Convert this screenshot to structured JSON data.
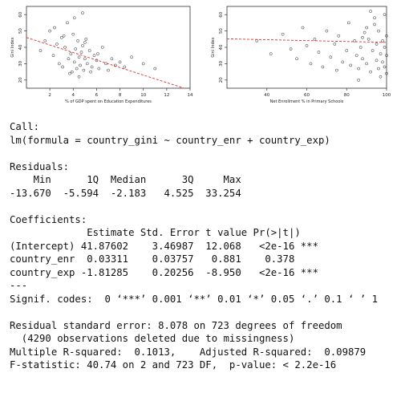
{
  "chart_data": [
    {
      "type": "scatter",
      "title": "",
      "xlabel": "% of GDP spent on Education Expenditures",
      "ylabel": "Gini Index",
      "xlim": [
        0,
        14
      ],
      "ylim": [
        15,
        65
      ],
      "xticks": [
        "2",
        "4",
        "6",
        "8",
        "10",
        "12",
        "14"
      ],
      "yticks": [
        "20",
        "30",
        "40",
        "50",
        "60"
      ],
      "grid": false,
      "series": [
        {
          "values_description_x_center": 4.2,
          "x": [
            1.2,
            1.6,
            2.0,
            2.3,
            2.6,
            2.8,
            3.0,
            3.1,
            3.3,
            3.5,
            3.6,
            3.8,
            3.9,
            4.0,
            4.1,
            4.2,
            4.3,
            4.4,
            4.5,
            4.6,
            4.7,
            4.8,
            4.9,
            5.0,
            5.1,
            5.2,
            5.4,
            5.6,
            5.8,
            6.0,
            6.2,
            6.5,
            6.8,
            7.0,
            7.3,
            7.6,
            8.0,
            8.4,
            9.0,
            10.0,
            11.0,
            2.4,
            3.2,
            3.7,
            4.1,
            4.5,
            5.0,
            5.5,
            6.1,
            4.8
          ],
          "y": [
            38,
            44,
            50,
            35,
            42,
            30,
            46,
            28,
            40,
            55,
            33,
            36,
            25,
            48,
            31,
            39,
            27,
            44,
            34,
            29,
            37,
            41,
            26,
            33,
            45,
            30,
            38,
            28,
            35,
            32,
            27,
            40,
            30,
            26,
            33,
            29,
            31,
            28,
            34,
            30,
            27,
            52,
            47,
            24,
            58,
            22,
            43,
            25,
            36,
            61
          ]
        }
      ],
      "trend": {
        "x": [
          0,
          13.5
        ],
        "y": [
          46,
          15
        ]
      }
    },
    {
      "type": "scatter",
      "title": "",
      "xlabel": "Net Enrollment % in Primary Schools",
      "ylabel": "Gini Index",
      "xlim": [
        20,
        100
      ],
      "ylim": [
        15,
        65
      ],
      "xticks": [
        "40",
        "60",
        "80",
        "100"
      ],
      "yticks": [
        "20",
        "30",
        "40",
        "50",
        "60"
      ],
      "grid": false,
      "series": [
        {
          "x": [
            35,
            42,
            48,
            52,
            55,
            58,
            60,
            62,
            64,
            66,
            68,
            70,
            72,
            74,
            75,
            76,
            78,
            80,
            81,
            82,
            84,
            85,
            86,
            87,
            88,
            89,
            90,
            91,
            92,
            93,
            94,
            95,
            95,
            96,
            96,
            97,
            97,
            98,
            98,
            99,
            99,
            99,
            100,
            100,
            100,
            94,
            92,
            90,
            88,
            86
          ],
          "y": [
            44,
            36,
            48,
            39,
            33,
            52,
            41,
            30,
            45,
            37,
            28,
            50,
            34,
            42,
            26,
            47,
            31,
            38,
            55,
            29,
            44,
            35,
            27,
            40,
            33,
            49,
            30,
            45,
            25,
            38,
            58,
            32,
            42,
            27,
            50,
            36,
            22,
            44,
            31,
            60,
            40,
            28,
            35,
            47,
            24,
            54,
            62,
            52,
            46,
            20
          ]
        }
      ],
      "trend": {
        "x": [
          20,
          100
        ],
        "y": [
          45.2,
          43.0
        ]
      }
    }
  ],
  "console": {
    "lines": [
      "Call:",
      "lm(formula = country_gini ~ country_enr + country_exp)",
      "",
      "Residuals:",
      "    Min      1Q  Median      3Q     Max",
      "-13.670  -5.594  -2.183   4.525  33.254",
      "",
      "Coefficients:",
      "             Estimate Std. Error t value Pr(>|t|)",
      "(Intercept) 41.87602    3.46987  12.068   <2e-16 ***",
      "country_enr  0.03311    0.03757   0.881    0.378",
      "country_exp -1.81285    0.20256  -8.950   <2e-16 ***",
      "---",
      "Signif. codes:  0 ‘***’ 0.001 ‘**’ 0.01 ‘*’ 0.05 ‘.’ 0.1 ‘ ’ 1",
      "",
      "Residual standard error: 8.078 on 723 degrees of freedom",
      "  (4290 observations deleted due to missingness)",
      "Multiple R-squared:  0.1013,    Adjusted R-squared:  0.09879",
      "F-statistic: 40.74 on 2 and 723 DF,  p-value: < 2.2e-16"
    ]
  },
  "colors": {
    "trend": "#e03030",
    "points": "#222222",
    "axis": "#333333"
  }
}
